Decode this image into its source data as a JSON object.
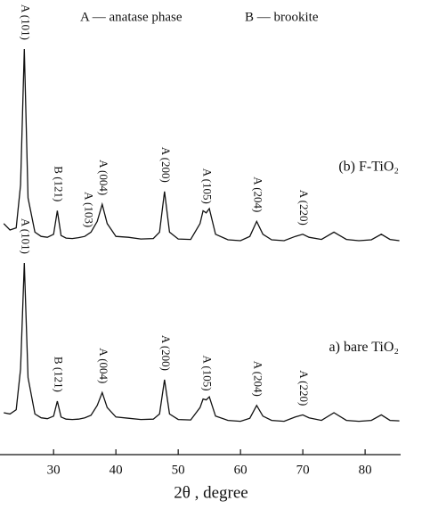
{
  "chart_data": {
    "type": "line",
    "legend_texts": [
      "A — anatase phase",
      "B — brookite"
    ],
    "xlabel": "2θ , degree",
    "x": [
      22,
      23,
      24,
      24.7,
      25.3,
      25.9,
      27,
      28,
      29,
      30,
      30.6,
      31.2,
      32,
      33,
      34,
      35,
      36,
      37,
      37.8,
      38.6,
      40,
      42,
      44,
      46,
      47,
      47.8,
      48.6,
      50,
      52,
      53.5,
      54,
      54.5,
      55,
      56,
      58,
      60,
      61.5,
      62.6,
      63.6,
      65,
      67,
      68.8,
      70,
      71,
      73,
      75,
      77,
      79,
      81,
      82.6,
      84,
      85.5
    ],
    "series": [
      {
        "name": "(b) F-TiO₂",
        "color": "#111111",
        "values": [
          54,
          52.5,
          53,
          63,
          94.8,
          60,
          52,
          51,
          50.8,
          51.5,
          57,
          51.2,
          50.6,
          50.5,
          50.7,
          51,
          52,
          54.5,
          58.5,
          54,
          51,
          50.8,
          50.4,
          50.5,
          52,
          61.5,
          52,
          50.4,
          50.3,
          54,
          57,
          56.5,
          57.5,
          51.5,
          50.2,
          50,
          51,
          54.5,
          51.5,
          50.2,
          50,
          51,
          51.5,
          50.8,
          50.3,
          52,
          50.3,
          50,
          50.2,
          51.5,
          50.3,
          50
        ],
        "annotations": [
          {
            "text": "A (101)",
            "x": 25.3
          },
          {
            "text": "B (121)",
            "x": 30.6
          },
          {
            "text": "A (103)",
            "x": 35.5
          },
          {
            "text": "A (004)",
            "x": 37.8
          },
          {
            "text": "A (200)",
            "x": 47.8
          },
          {
            "text": "A (105)",
            "x": 54.5
          },
          {
            "text": "A (204)",
            "x": 62.6
          },
          {
            "text": "A (220)",
            "x": 70
          }
        ]
      },
      {
        "name": "a) bare TiO₂",
        "color": "#111111",
        "values": [
          9.8,
          9.5,
          10.5,
          20,
          44.8,
          18,
          9.5,
          8.6,
          8.4,
          9,
          12.5,
          8.8,
          8.3,
          8.2,
          8.3,
          8.6,
          9.2,
          11.5,
          14.5,
          11,
          8.8,
          8.5,
          8.2,
          8.3,
          9.5,
          17.5,
          9.5,
          8.2,
          8.1,
          11,
          13,
          12.8,
          13.5,
          9,
          8,
          7.8,
          8.5,
          11.5,
          9,
          8,
          7.8,
          8.8,
          9.3,
          8.6,
          8,
          9.8,
          8,
          7.8,
          8,
          9.3,
          8,
          7.9
        ],
        "annotations": [
          {
            "text": "A (101)",
            "x": 25.3
          },
          {
            "text": "B (121)",
            "x": 30.6
          },
          {
            "text": "A (004)",
            "x": 37.8
          },
          {
            "text": "A (200)",
            "x": 47.8
          },
          {
            "text": "A (105)",
            "x": 54.5
          },
          {
            "text": "A (204)",
            "x": 62.6
          },
          {
            "text": "A (220)",
            "x": 70
          }
        ]
      }
    ],
    "xlim": [
      21.4,
      85.7
    ],
    "ylim": [
      0,
      100
    ],
    "xticks": [
      30,
      40,
      50,
      60,
      70,
      80
    ]
  }
}
